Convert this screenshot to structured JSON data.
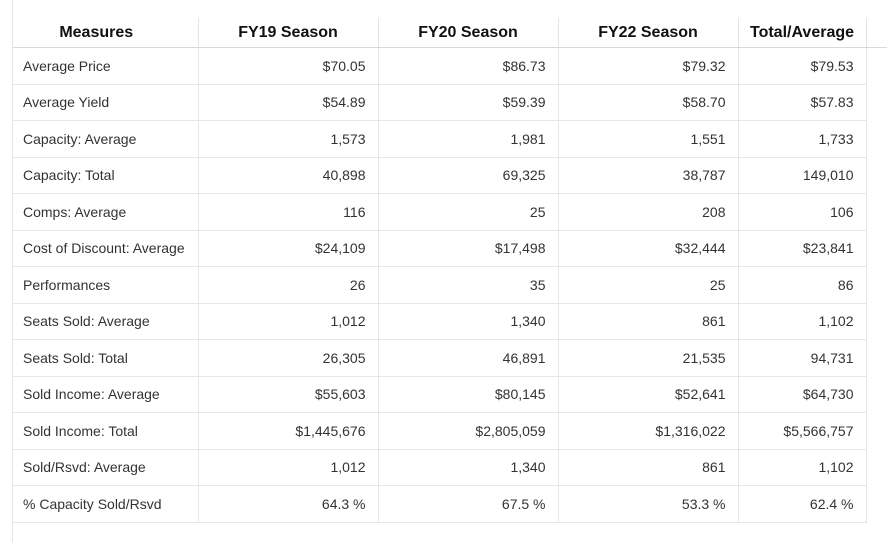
{
  "table": {
    "headers": [
      "Measures",
      "FY19 Season",
      "FY20 Season",
      "FY22 Season",
      "Total/Average"
    ],
    "rows": [
      {
        "measure": "Average Price",
        "values": [
          "$70.05",
          "$86.73",
          "$79.32",
          "$79.53"
        ]
      },
      {
        "measure": "Average Yield",
        "values": [
          "$54.89",
          "$59.39",
          "$58.70",
          "$57.83"
        ]
      },
      {
        "measure": "Capacity: Average",
        "values": [
          "1,573",
          "1,981",
          "1,551",
          "1,733"
        ]
      },
      {
        "measure": "Capacity: Total",
        "values": [
          "40,898",
          "69,325",
          "38,787",
          "149,010"
        ]
      },
      {
        "measure": "Comps: Average",
        "values": [
          "116",
          "25",
          "208",
          "106"
        ]
      },
      {
        "measure": "Cost of Discount: Average",
        "values": [
          "$24,109",
          "$17,498",
          "$32,444",
          "$23,841"
        ]
      },
      {
        "measure": "Performances",
        "values": [
          "26",
          "35",
          "25",
          "86"
        ]
      },
      {
        "measure": "Seats Sold: Average",
        "values": [
          "1,012",
          "1,340",
          "861",
          "1,102"
        ]
      },
      {
        "measure": "Seats Sold: Total",
        "values": [
          "26,305",
          "46,891",
          "21,535",
          "94,731"
        ]
      },
      {
        "measure": "Sold Income: Average",
        "values": [
          "$55,603",
          "$80,145",
          "$52,641",
          "$64,730"
        ]
      },
      {
        "measure": "Sold Income: Total",
        "values": [
          "$1,445,676",
          "$2,805,059",
          "$1,316,022",
          "$5,566,757"
        ]
      },
      {
        "measure": "Sold/Rsvd: Average",
        "values": [
          "1,012",
          "1,340",
          "861",
          "1,102"
        ]
      },
      {
        "measure": "% Capacity Sold/Rsvd",
        "values": [
          "64.3 %",
          "67.5 %",
          "53.3 %",
          "62.4 %"
        ]
      }
    ]
  }
}
